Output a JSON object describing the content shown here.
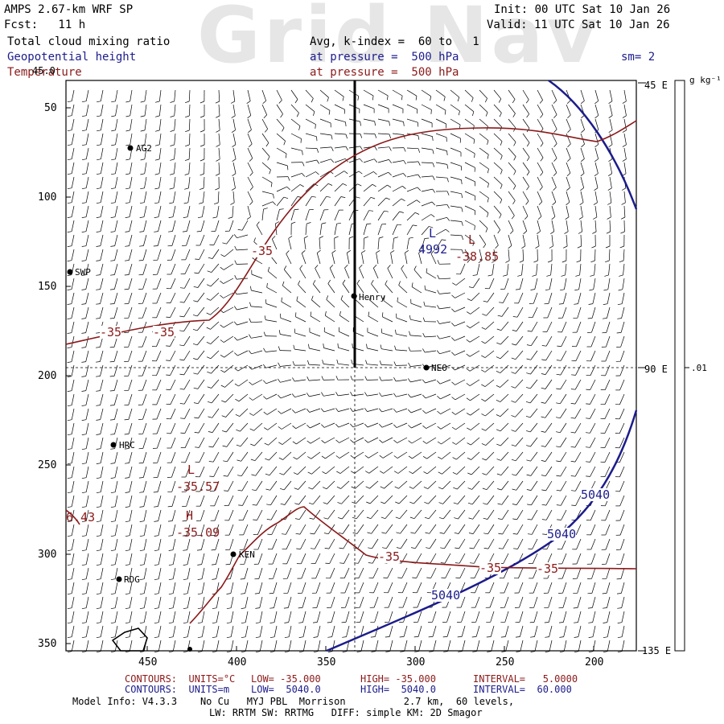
{
  "header": {
    "model": "AMPS 2.67-km WRF SP",
    "fcst": "Fcst:   11 h",
    "init": "Init: 00 UTC Sat 10 Jan 26",
    "valid": "Valid: 11 UTC Sat 10 Jan 26",
    "watermark": "Grid Nav"
  },
  "fields": [
    {
      "name": "Total cloud mixing ratio",
      "detail": "Avg, k-index =  60 to   1",
      "color": "#000000"
    },
    {
      "name": "Geopotential height",
      "detail": "at pressure =  500 hPa",
      "color": "#1c1c8c"
    },
    {
      "name": "Temperature",
      "detail": "at pressure =  500 hPa",
      "color": "#8b1a1a"
    }
  ],
  "smoothing": "sm= 2",
  "colorbar": {
    "units": "g kg⁻¹",
    "tick": ".01"
  },
  "map": {
    "x_ticks": [
      "450",
      "400",
      "350",
      "300",
      "250",
      "200"
    ],
    "y_ticks": [
      "50",
      "100",
      "150",
      "200",
      "250",
      "300",
      "350"
    ],
    "right_labels": [
      "45 E",
      "90 E",
      "135 E"
    ],
    "top_left_label": "45.0",
    "stations": [
      "AG2",
      "SWP",
      "Henry",
      "NEO",
      "HRC",
      "KEN",
      "RDG"
    ],
    "lows_highs": [
      {
        "mark": "L",
        "value": "4992"
      },
      {
        "mark": "L",
        "value": "-38.85"
      },
      {
        "mark": "L",
        "value": "-35.57"
      },
      {
        "mark": "H",
        "value": "-35.09"
      }
    ],
    "edge_value": "6.43",
    "temp_contour_labels": [
      "-35",
      "-35",
      "-35",
      "-35",
      "-35",
      "-35"
    ],
    "height_contour_labels": [
      "5040",
      "5040",
      "5040"
    ]
  },
  "footer": {
    "temp_contours": [
      "CONTOURS:  UNITS=°C",
      "LOW= -35.000",
      "HIGH= -35.000",
      "INTERVAL=   5.0000"
    ],
    "height_contours": [
      "CONTOURS:  UNITS=m",
      "LOW=  5040.0",
      "HIGH=  5040.0",
      "INTERVAL=  60.000"
    ],
    "model_info_1": "Model Info: V4.3.3    No Cu   MYJ PBL  Morrison          2.7 km,  60 levels,",
    "model_info_2": "LW: RRTM SW: RRTMG   DIFF: simple KM: 2D Smagor"
  }
}
